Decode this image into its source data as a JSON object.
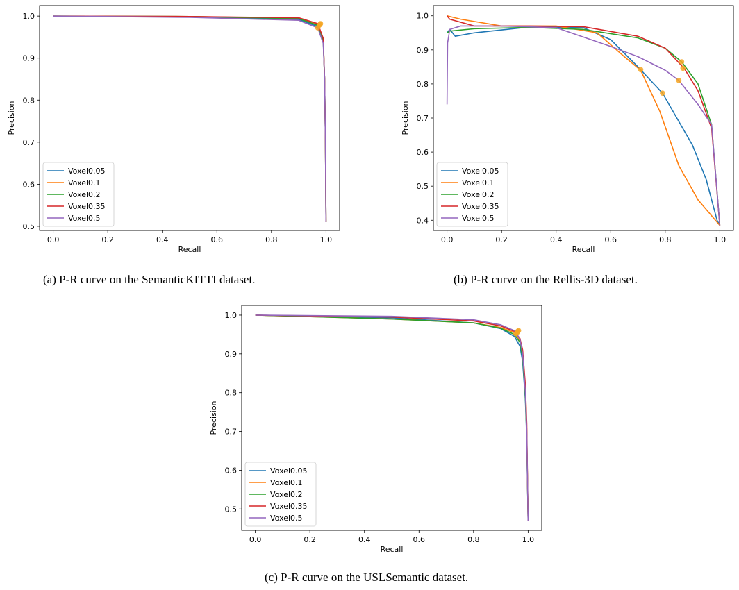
{
  "chart_data": [
    {
      "type": "line",
      "caption": "(a) P-R curve on the SemanticKITTI dataset.",
      "xlabel": "Recall",
      "ylabel": "Precision",
      "xlim": [
        -0.05,
        1.05
      ],
      "ylim": [
        0.49,
        1.025
      ],
      "xticks": [
        "0.0",
        "0.2",
        "0.4",
        "0.6",
        "0.8",
        "1.0"
      ],
      "yticks": [
        "0.5",
        "0.6",
        "0.7",
        "0.8",
        "0.9",
        "1.0"
      ],
      "legend_position": "lower-left",
      "series": [
        {
          "name": "Voxel0.05",
          "color": "#1f77b4",
          "x": [
            0,
            0.5,
            0.9,
            0.97,
            0.99,
            0.995,
            0.998,
            1.0
          ],
          "y": [
            1.0,
            0.998,
            0.992,
            0.975,
            0.94,
            0.85,
            0.7,
            0.51
          ]
        },
        {
          "name": "Voxel0.1",
          "color": "#ff7f0e",
          "x": [
            0,
            0.5,
            0.9,
            0.97,
            0.99,
            0.995,
            0.998,
            1.0
          ],
          "y": [
            1.0,
            0.999,
            0.995,
            0.98,
            0.945,
            0.85,
            0.7,
            0.51
          ]
        },
        {
          "name": "Voxel0.2",
          "color": "#2ca02c",
          "x": [
            0,
            0.5,
            0.9,
            0.97,
            0.99,
            0.995,
            0.998,
            1.0
          ],
          "y": [
            1.0,
            0.999,
            0.994,
            0.978,
            0.943,
            0.85,
            0.7,
            0.51
          ]
        },
        {
          "name": "Voxel0.35",
          "color": "#d62728",
          "x": [
            0,
            0.5,
            0.9,
            0.97,
            0.99,
            0.995,
            0.998,
            1.0
          ],
          "y": [
            1.0,
            0.999,
            0.996,
            0.982,
            0.947,
            0.85,
            0.7,
            0.51
          ]
        },
        {
          "name": "Voxel0.5",
          "color": "#9467bd",
          "x": [
            0,
            0.5,
            0.9,
            0.97,
            0.99,
            0.995,
            0.998,
            1.0
          ],
          "y": [
            1.0,
            0.997,
            0.99,
            0.972,
            0.935,
            0.85,
            0.7,
            0.51
          ]
        }
      ],
      "markers": {
        "color": "#f5a623",
        "x": [
          0.975,
          0.98,
          0.97,
          0.978
        ],
        "y": [
          0.978,
          0.982,
          0.972,
          0.98
        ]
      }
    },
    {
      "type": "line",
      "caption": "(b) P-R curve on the Rellis-3D dataset.",
      "xlabel": "Recall",
      "ylabel": "Precision",
      "xlim": [
        -0.05,
        1.05
      ],
      "ylim": [
        0.37,
        1.03
      ],
      "xticks": [
        "0.0",
        "0.2",
        "0.4",
        "0.6",
        "0.8",
        "1.0"
      ],
      "yticks": [
        "0.4",
        "0.5",
        "0.6",
        "0.7",
        "0.8",
        "0.9",
        "1.0"
      ],
      "legend_position": "lower-left",
      "series": [
        {
          "name": "Voxel0.05",
          "color": "#1f77b4",
          "x": [
            0,
            0.01,
            0.03,
            0.1,
            0.3,
            0.5,
            0.6,
            0.7,
            0.79,
            0.9,
            0.95,
            0.99,
            1.0
          ],
          "y": [
            0.95,
            0.96,
            0.94,
            0.95,
            0.967,
            0.965,
            0.93,
            0.85,
            0.773,
            0.62,
            0.52,
            0.4,
            0.385
          ]
        },
        {
          "name": "Voxel0.1",
          "color": "#ff7f0e",
          "x": [
            0,
            0.05,
            0.2,
            0.4,
            0.55,
            0.65,
            0.71,
            0.78,
            0.85,
            0.92,
            1.0
          ],
          "y": [
            1.0,
            0.99,
            0.97,
            0.97,
            0.95,
            0.88,
            0.84,
            0.72,
            0.56,
            0.46,
            0.385
          ]
        },
        {
          "name": "Voxel0.2",
          "color": "#2ca02c",
          "x": [
            0,
            0.01,
            0.1,
            0.3,
            0.5,
            0.7,
            0.8,
            0.86,
            0.92,
            0.97,
            1.0
          ],
          "y": [
            0.95,
            0.955,
            0.962,
            0.966,
            0.96,
            0.935,
            0.905,
            0.865,
            0.8,
            0.68,
            0.385
          ]
        },
        {
          "name": "Voxel0.35",
          "color": "#d62728",
          "x": [
            0,
            0.01,
            0.1,
            0.3,
            0.5,
            0.7,
            0.8,
            0.87,
            0.92,
            0.97,
            1.0
          ],
          "y": [
            1.0,
            0.99,
            0.97,
            0.97,
            0.968,
            0.94,
            0.905,
            0.845,
            0.78,
            0.67,
            0.385
          ]
        },
        {
          "name": "Voxel0.5",
          "color": "#9467bd",
          "x": [
            0,
            0.002,
            0.01,
            0.05,
            0.2,
            0.4,
            0.6,
            0.7,
            0.8,
            0.85,
            0.92,
            0.97,
            1.0
          ],
          "y": [
            0.74,
            0.92,
            0.96,
            0.97,
            0.97,
            0.965,
            0.91,
            0.88,
            0.84,
            0.81,
            0.74,
            0.68,
            0.385
          ]
        }
      ],
      "markers": {
        "color": "#f5a623",
        "x": [
          0.71,
          0.79,
          0.85,
          0.86,
          0.865
        ],
        "y": [
          0.842,
          0.773,
          0.81,
          0.865,
          0.846
        ]
      }
    },
    {
      "type": "line",
      "caption": "(c) P-R curve on the USLSemantic dataset.",
      "xlabel": "Recall",
      "ylabel": "Precision",
      "xlim": [
        -0.05,
        1.05
      ],
      "ylim": [
        0.445,
        1.025
      ],
      "xticks": [
        "0.0",
        "0.2",
        "0.4",
        "0.6",
        "0.8",
        "1.0"
      ],
      "yticks": [
        "0.5",
        "0.6",
        "0.7",
        "0.8",
        "0.9",
        "1.0"
      ],
      "legend_position": "lower-left",
      "series": [
        {
          "name": "Voxel0.05",
          "color": "#1f77b4",
          "x": [
            0,
            0.5,
            0.8,
            0.9,
            0.95,
            0.97,
            0.98,
            0.99,
            0.995,
            1.0
          ],
          "y": [
            1.0,
            0.993,
            0.98,
            0.965,
            0.945,
            0.92,
            0.88,
            0.78,
            0.68,
            0.47
          ]
        },
        {
          "name": "Voxel0.1",
          "color": "#ff7f0e",
          "x": [
            0,
            0.5,
            0.8,
            0.9,
            0.95,
            0.97,
            0.98,
            0.99,
            0.995,
            1.0
          ],
          "y": [
            1.0,
            0.99,
            0.98,
            0.968,
            0.955,
            0.935,
            0.9,
            0.8,
            0.7,
            0.47
          ]
        },
        {
          "name": "Voxel0.2",
          "color": "#2ca02c",
          "x": [
            0,
            0.5,
            0.8,
            0.9,
            0.95,
            0.97,
            0.98,
            0.99,
            0.995,
            1.0
          ],
          "y": [
            1.0,
            0.99,
            0.98,
            0.966,
            0.95,
            0.93,
            0.89,
            0.79,
            0.69,
            0.47
          ]
        },
        {
          "name": "Voxel0.35",
          "color": "#d62728",
          "x": [
            0,
            0.5,
            0.8,
            0.9,
            0.95,
            0.97,
            0.98,
            0.99,
            0.995,
            1.0
          ],
          "y": [
            1.0,
            0.995,
            0.985,
            0.972,
            0.958,
            0.94,
            0.91,
            0.82,
            0.72,
            0.47
          ]
        },
        {
          "name": "Voxel0.5",
          "color": "#9467bd",
          "x": [
            0,
            0.5,
            0.8,
            0.9,
            0.95,
            0.97,
            0.98,
            0.99,
            0.995,
            1.0
          ],
          "y": [
            1.0,
            0.997,
            0.988,
            0.975,
            0.96,
            0.938,
            0.9,
            0.8,
            0.7,
            0.47
          ]
        }
      ],
      "markers": {
        "color": "#f5a623",
        "x": [
          0.955,
          0.965,
          0.96,
          0.962
        ],
        "y": [
          0.952,
          0.96,
          0.955,
          0.958
        ]
      }
    }
  ]
}
